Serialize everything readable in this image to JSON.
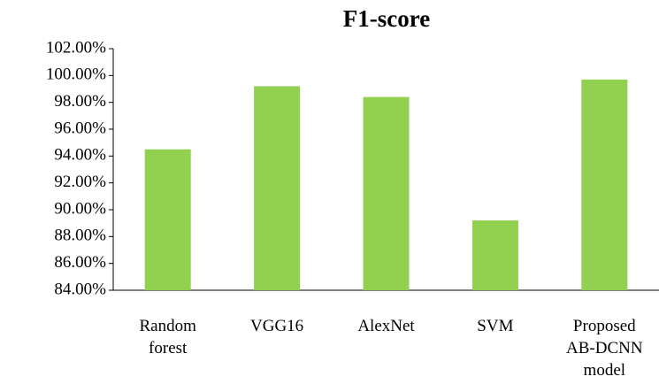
{
  "chart_data": {
    "type": "bar",
    "title": "F1-score",
    "categories": [
      "Random forest",
      "VGG16",
      "AlexNet",
      "SVM",
      "Proposed AB-DCNN model"
    ],
    "values": [
      94.5,
      99.2,
      98.4,
      89.2,
      99.7
    ],
    "color": "#92d050",
    "ylim": [
      84,
      102
    ],
    "yticks": [
      {
        "value": 84,
        "label": "84.00%"
      },
      {
        "value": 86,
        "label": "86.00%"
      },
      {
        "value": 88,
        "label": "88.00%"
      },
      {
        "value": 90,
        "label": "90.00%"
      },
      {
        "value": 92,
        "label": "92.00%"
      },
      {
        "value": 94,
        "label": "94.00%"
      },
      {
        "value": 96,
        "label": "96.00%"
      },
      {
        "value": 98,
        "label": "98.00%"
      },
      {
        "value": 100,
        "label": "100.00%"
      },
      {
        "value": 102,
        "label": "102.00%"
      }
    ],
    "grid": false
  }
}
